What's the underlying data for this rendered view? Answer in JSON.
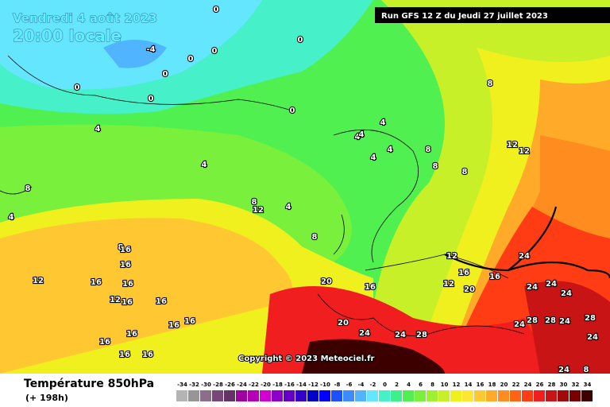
{
  "header": {
    "date": "Vendredi 4 août 2023",
    "time": "20:00 locale",
    "run": "Run GFS 12 Z du Jeudi 27 juillet 2023"
  },
  "copyright": "Copyright © 2023 Meteociel.fr",
  "footer": {
    "title": "Température 850hPa",
    "lead": "(+ 198h)"
  },
  "contour_labels": [
    0,
    -4,
    0,
    0,
    0,
    0,
    0,
    0,
    0,
    4,
    4,
    4,
    4,
    4,
    4,
    4,
    8,
    12,
    4,
    8,
    8,
    8,
    12,
    12,
    8,
    12,
    8,
    16,
    16,
    16,
    16,
    12,
    16,
    16,
    16,
    16,
    16,
    16,
    16,
    16,
    20,
    20,
    16,
    12,
    16,
    12,
    20,
    24,
    24,
    24,
    24,
    24,
    28,
    28,
    24,
    28,
    24,
    24,
    28,
    24,
    24,
    8,
    8,
    16,
    4,
    8
  ],
  "scale": [
    {
      "value": -34,
      "color": "#b4b4b4"
    },
    {
      "value": -32,
      "color": "#969696"
    },
    {
      "value": -30,
      "color": "#8c6e8c"
    },
    {
      "value": -28,
      "color": "#784678"
    },
    {
      "value": -26,
      "color": "#643264"
    },
    {
      "value": -24,
      "color": "#a000a0"
    },
    {
      "value": -22,
      "color": "#b400b4"
    },
    {
      "value": -20,
      "color": "#d200d2"
    },
    {
      "value": -18,
      "color": "#8c00c8"
    },
    {
      "value": -16,
      "color": "#6400c8"
    },
    {
      "value": -14,
      "color": "#3200c8"
    },
    {
      "value": -12,
      "color": "#0000c8"
    },
    {
      "value": -10,
      "color": "#0000ff"
    },
    {
      "value": -8,
      "color": "#1e50ff"
    },
    {
      "value": -6,
      "color": "#3c8cff"
    },
    {
      "value": -4,
      "color": "#50b4ff"
    },
    {
      "value": -2,
      "color": "#64e6ff"
    },
    {
      "value": 0,
      "color": "#46f0c8"
    },
    {
      "value": 2,
      "color": "#3cf08c"
    },
    {
      "value": 4,
      "color": "#50f050"
    },
    {
      "value": 6,
      "color": "#78f03c"
    },
    {
      "value": 8,
      "color": "#a0f032"
    },
    {
      "value": 10,
      "color": "#c8f028"
    },
    {
      "value": 12,
      "color": "#f0f01e"
    },
    {
      "value": 14,
      "color": "#ffe632"
    },
    {
      "value": 16,
      "color": "#ffc832"
    },
    {
      "value": 18,
      "color": "#ffaa28"
    },
    {
      "value": 20,
      "color": "#ff8c1e"
    },
    {
      "value": 22,
      "color": "#ff6414"
    },
    {
      "value": 24,
      "color": "#ff3c14"
    },
    {
      "value": 26,
      "color": "#f01e1e"
    },
    {
      "value": 28,
      "color": "#c81414"
    },
    {
      "value": 30,
      "color": "#a00a0a"
    },
    {
      "value": 32,
      "color": "#780000"
    },
    {
      "value": 34,
      "color": "#3c0000"
    }
  ]
}
